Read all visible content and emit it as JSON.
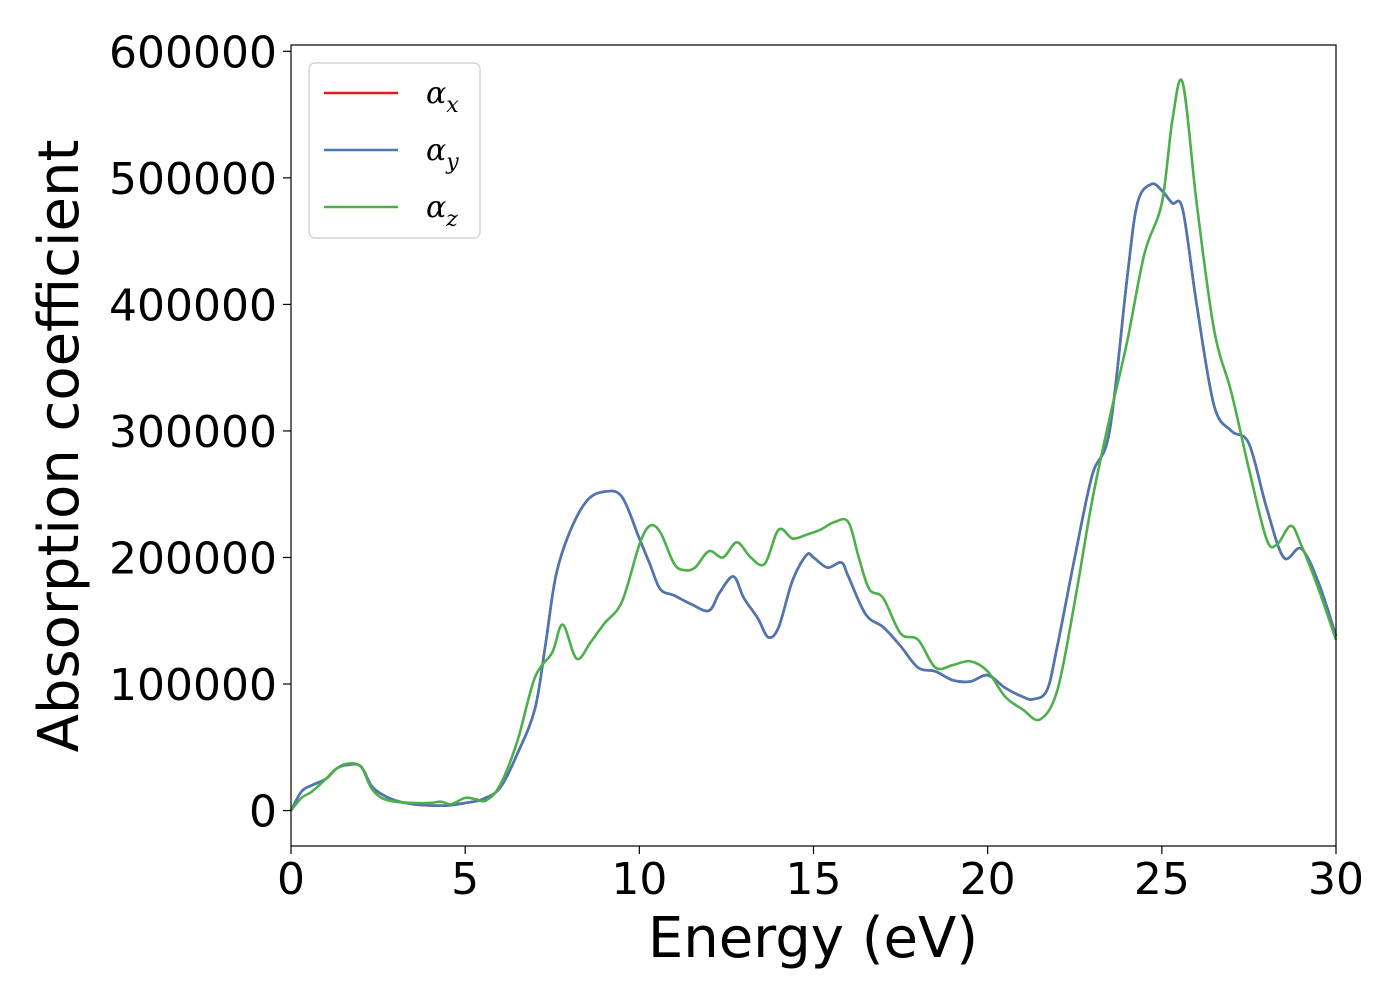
{
  "chart_data": {
    "type": "line",
    "title": "",
    "xlabel": "Energy (eV)",
    "ylabel": "Absorption coefficient",
    "xlim": [
      0,
      30
    ],
    "ylim": [
      -28000,
      605000
    ],
    "x_ticks": [
      0,
      5,
      10,
      15,
      20,
      25,
      30
    ],
    "y_ticks": [
      0,
      100000,
      200000,
      300000,
      400000,
      500000,
      600000
    ],
    "grid": false,
    "legend_position": "top-left",
    "series": [
      {
        "name": "α_x",
        "color": "#e41a1c",
        "x": [
          0,
          0.3,
          0.6,
          1.0,
          1.3,
          1.6,
          2.0,
          2.3,
          2.6,
          3.0,
          3.5,
          4.0,
          4.5,
          5.0,
          5.5,
          6.0,
          6.5,
          7.0,
          7.3,
          7.6,
          8.0,
          8.5,
          9.0,
          9.5,
          10.0,
          10.3,
          10.6,
          11.0,
          11.5,
          12.0,
          12.3,
          12.7,
          13.0,
          13.4,
          13.7,
          14.0,
          14.4,
          14.8,
          15.0,
          15.4,
          15.8,
          16.0,
          16.5,
          17.0,
          17.5,
          18.0,
          18.5,
          19.0,
          19.5,
          20.0,
          20.5,
          21.0,
          21.3,
          21.7,
          22.0,
          22.5,
          23.0,
          23.5,
          24.0,
          24.3,
          24.7,
          25.0,
          25.3,
          25.6,
          26.0,
          26.5,
          27.0,
          27.5,
          28.0,
          28.5,
          29.0,
          29.5,
          30.0
        ],
        "y": [
          0,
          15000,
          20000,
          25000,
          33000,
          36000,
          35000,
          20000,
          13000,
          8000,
          5000,
          4000,
          4000,
          6000,
          9000,
          18000,
          45000,
          80000,
          130000,
          185000,
          220000,
          245000,
          252000,
          248000,
          215000,
          195000,
          175000,
          170000,
          163000,
          158000,
          172000,
          185000,
          168000,
          152000,
          137000,
          145000,
          182000,
          202000,
          200000,
          192000,
          196000,
          185000,
          155000,
          145000,
          130000,
          113000,
          110000,
          103000,
          102000,
          107000,
          97000,
          90000,
          88000,
          95000,
          130000,
          200000,
          265000,
          300000,
          420000,
          480000,
          495000,
          490000,
          480000,
          475000,
          400000,
          320000,
          300000,
          290000,
          240000,
          200000,
          207000,
          180000,
          138000
        ]
      },
      {
        "name": "α_y",
        "color": "#4a78b5",
        "x": [
          0,
          0.3,
          0.6,
          1.0,
          1.3,
          1.6,
          2.0,
          2.3,
          2.6,
          3.0,
          3.5,
          4.0,
          4.5,
          5.0,
          5.5,
          6.0,
          6.5,
          7.0,
          7.3,
          7.6,
          8.0,
          8.5,
          9.0,
          9.5,
          10.0,
          10.3,
          10.6,
          11.0,
          11.5,
          12.0,
          12.3,
          12.7,
          13.0,
          13.4,
          13.7,
          14.0,
          14.4,
          14.8,
          15.0,
          15.4,
          15.8,
          16.0,
          16.5,
          17.0,
          17.5,
          18.0,
          18.5,
          19.0,
          19.5,
          20.0,
          20.5,
          21.0,
          21.3,
          21.7,
          22.0,
          22.5,
          23.0,
          23.5,
          24.0,
          24.3,
          24.7,
          25.0,
          25.3,
          25.6,
          26.0,
          26.5,
          27.0,
          27.5,
          28.0,
          28.5,
          29.0,
          29.5,
          30.0
        ],
        "y": [
          0,
          15000,
          20000,
          25000,
          33000,
          36000,
          35000,
          20000,
          13000,
          8000,
          5000,
          4000,
          4000,
          6000,
          9000,
          18000,
          45000,
          80000,
          130000,
          185000,
          220000,
          245000,
          252000,
          248000,
          215000,
          195000,
          175000,
          170000,
          163000,
          158000,
          172000,
          185000,
          168000,
          152000,
          137000,
          145000,
          182000,
          202000,
          200000,
          192000,
          196000,
          185000,
          155000,
          145000,
          130000,
          113000,
          110000,
          103000,
          102000,
          107000,
          97000,
          90000,
          88000,
          95000,
          130000,
          200000,
          265000,
          300000,
          420000,
          480000,
          495000,
          490000,
          480000,
          475000,
          400000,
          320000,
          300000,
          290000,
          240000,
          200000,
          207000,
          180000,
          138000
        ]
      },
      {
        "name": "α_z",
        "color": "#4daf4a",
        "x": [
          0,
          0.3,
          0.6,
          1.0,
          1.3,
          1.6,
          2.0,
          2.3,
          2.6,
          3.0,
          3.5,
          4.0,
          4.3,
          4.6,
          5.0,
          5.3,
          5.6,
          6.0,
          6.5,
          7.0,
          7.5,
          7.8,
          8.2,
          8.6,
          9.0,
          9.5,
          10.0,
          10.3,
          10.6,
          11.0,
          11.3,
          11.6,
          12.0,
          12.4,
          12.8,
          13.2,
          13.6,
          14.0,
          14.4,
          14.8,
          15.2,
          15.6,
          16.0,
          16.3,
          16.6,
          17.0,
          17.5,
          18.0,
          18.5,
          19.0,
          19.5,
          20.0,
          20.5,
          21.0,
          21.5,
          22.0,
          22.5,
          23.0,
          23.5,
          24.0,
          24.5,
          25.0,
          25.3,
          25.6,
          26.0,
          26.5,
          27.0,
          27.5,
          28.0,
          28.3,
          28.7,
          29.0,
          29.5,
          30.0
        ],
        "y": [
          0,
          10000,
          15000,
          25000,
          33000,
          37000,
          35000,
          18000,
          10000,
          7000,
          6000,
          6000,
          7000,
          5000,
          10000,
          9000,
          8000,
          20000,
          55000,
          105000,
          125000,
          147000,
          120000,
          133000,
          148000,
          165000,
          210000,
          225000,
          220000,
          195000,
          190000,
          192000,
          205000,
          200000,
          212000,
          200000,
          195000,
          222000,
          215000,
          218000,
          222000,
          228000,
          228000,
          200000,
          175000,
          168000,
          140000,
          135000,
          113000,
          115000,
          118000,
          110000,
          90000,
          80000,
          72000,
          95000,
          165000,
          245000,
          310000,
          370000,
          440000,
          480000,
          545000,
          575000,
          480000,
          380000,
          330000,
          270000,
          215000,
          210000,
          225000,
          210000,
          175000,
          135000
        ]
      }
    ]
  }
}
